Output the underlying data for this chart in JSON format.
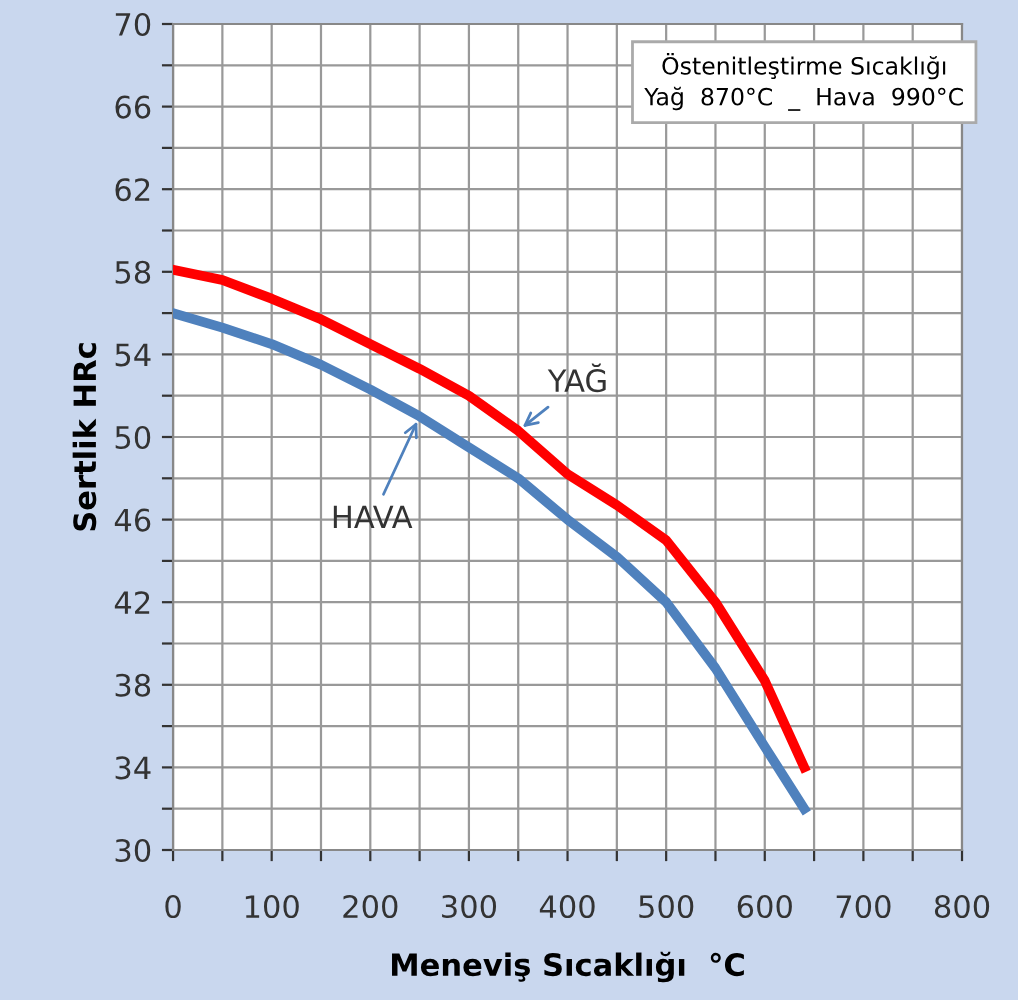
{
  "chart_data": {
    "type": "line",
    "xlabel": "Meneviş Sıcaklığı  °C",
    "ylabel": "Sertlik HRc",
    "x": [
      0,
      50,
      100,
      150,
      200,
      250,
      300,
      350,
      400,
      450,
      500,
      550,
      600,
      640
    ],
    "series": [
      {
        "color": "#ff0000",
        "values": [
          58.1,
          57.6,
          56.7,
          55.7,
          54.5,
          53.3,
          52.0,
          50.3,
          48.2,
          46.7,
          45.0,
          42.0,
          38.2,
          34.0
        ]
      },
      {
        "color": "#4f81bd",
        "values": [
          56.0,
          55.3,
          54.5,
          53.5,
          52.3,
          51.0,
          49.5,
          48.0,
          46.0,
          44.2,
          42.0,
          38.8,
          35.0,
          32.0
        ]
      }
    ],
    "xlim": [
      0,
      800
    ],
    "ylim": [
      30,
      70
    ],
    "xticks": [
      0,
      {
        "value": 50,
        "label": null
      },
      100,
      {
        "value": 150,
        "label": null
      },
      200,
      {
        "value": 250,
        "label": null
      },
      300,
      {
        "value": 350,
        "label": null
      },
      400,
      {
        "value": 450,
        "label": null
      },
      500,
      {
        "value": 550,
        "label": null
      },
      600,
      {
        "value": 650,
        "label": null
      },
      700,
      {
        "value": 750,
        "label": null
      },
      800
    ],
    "yticks": [
      30,
      {
        "value": 32,
        "label": null
      },
      34,
      {
        "value": 36,
        "label": null
      },
      38,
      {
        "value": 40,
        "label": null
      },
      42,
      {
        "value": 44,
        "label": null
      },
      46,
      {
        "value": 48,
        "label": null
      },
      50,
      {
        "value": 52,
        "label": null
      },
      54,
      {
        "value": 56,
        "label": null
      },
      58,
      {
        "value": 60,
        "label": null
      },
      62,
      {
        "value": 64,
        "label": null
      },
      66,
      {
        "value": 68,
        "label": null
      },
      70
    ],
    "grid": true,
    "marker": "none",
    "line_style": "solid",
    "annotations": [
      "Östenitleştirme Sıcaklığı\nYağ  870°C  _  Hava  990°C",
      {
        "text": "YAĞ",
        "x": 350,
        "y": 50.3
      },
      {
        "text": "HAVA",
        "x": 250,
        "y": 51.0
      }
    ]
  }
}
